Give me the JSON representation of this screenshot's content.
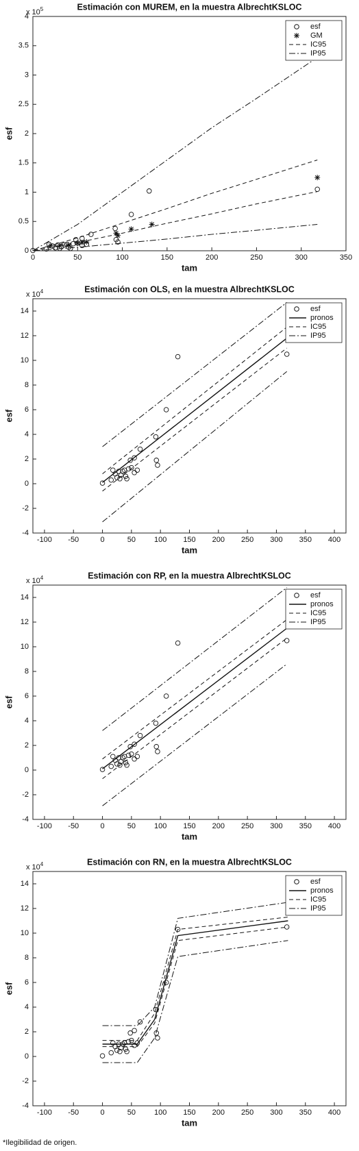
{
  "chart_data": [
    {
      "type": "scatter",
      "title": "Estimación con MUREM, en la muestra AlbrechtKSLOC",
      "x_label": "tam",
      "y_label": "esf",
      "y_multiplier": {
        "base": "x 10",
        "exponent": "5"
      },
      "xlim": [
        0,
        350
      ],
      "xticks": [
        0,
        50,
        100,
        150,
        200,
        250,
        300,
        350
      ],
      "ylim": [
        0,
        400000
      ],
      "yticks": [
        0,
        {
          "value": 50000,
          "label": "0.5"
        },
        {
          "value": 100000,
          "label": "1"
        },
        {
          "value": 150000,
          "label": "1.5"
        },
        {
          "value": 200000,
          "label": "2"
        },
        {
          "value": 250000,
          "label": "2.5"
        },
        {
          "value": 300000,
          "label": "3"
        },
        {
          "value": 350000,
          "label": "3.5"
        },
        {
          "value": 400000,
          "label": "4"
        }
      ],
      "series": [
        {
          "name": "esf",
          "marker": "circle",
          "x": [
            0,
            15,
            18,
            22,
            25,
            28,
            30,
            32,
            35,
            38,
            40,
            42,
            45,
            48,
            50,
            55,
            55,
            60,
            65,
            92,
            93,
            95,
            110,
            130,
            318
          ],
          "values": [
            500,
            3000,
            11000,
            8000,
            5000,
            10000,
            4000,
            7000,
            10000,
            11000,
            6000,
            4000,
            12000,
            19000,
            13000,
            9000,
            21000,
            11000,
            28000,
            38000,
            19000,
            15000,
            62000,
            102000,
            105000
          ]
        },
        {
          "name": "GM",
          "marker": "star",
          "x": [
            20,
            30,
            40,
            50,
            55,
            60,
            93,
            95,
            110,
            133,
            318
          ],
          "values": [
            9000,
            9000,
            10000,
            13000,
            14000,
            15000,
            30000,
            26000,
            37000,
            45000,
            125000
          ]
        },
        {
          "name": "IC95",
          "dash": "dashed",
          "x": [
            1,
            50,
            100,
            150,
            200,
            250,
            318
          ],
          "upper": [
            500,
            22000,
            47000,
            72000,
            98000,
            122000,
            155000
          ],
          "lower": [
            300,
            14000,
            30000,
            47000,
            63000,
            80000,
            101000
          ]
        },
        {
          "name": "IP95",
          "dash": "dashdot",
          "x": [
            1,
            50,
            100,
            150,
            200,
            250,
            318
          ],
          "upper": [
            1000,
            45000,
            100000,
            155000,
            210000,
            260000,
            330000
          ],
          "lower": [
            100,
            6000,
            13000,
            20000,
            28000,
            35000,
            45000
          ]
        }
      ]
    },
    {
      "type": "scatter",
      "title": "Estimación con OLS, en la muestra AlbrechtKSLOC",
      "x_label": "tam",
      "y_label": "esf",
      "y_multiplier": {
        "base": "x 10",
        "exponent": "4"
      },
      "xlim": [
        -120,
        420
      ],
      "xticks": [
        -100,
        -50,
        0,
        50,
        100,
        150,
        200,
        250,
        300,
        350,
        400
      ],
      "ylim": [
        -40000,
        150000
      ],
      "yticks": [
        {
          "value": -40000,
          "label": "-4"
        },
        {
          "value": -20000,
          "label": "-2"
        },
        0,
        {
          "value": 20000,
          "label": "2"
        },
        {
          "value": 40000,
          "label": "4"
        },
        {
          "value": 60000,
          "label": "6"
        },
        {
          "value": 80000,
          "label": "8"
        },
        {
          "value": 100000,
          "label": "10"
        },
        {
          "value": 120000,
          "label": "12"
        },
        {
          "value": 140000,
          "label": "14"
        }
      ],
      "series": [
        {
          "name": "esf",
          "marker": "circle",
          "x": [
            0,
            15,
            18,
            22,
            25,
            28,
            30,
            32,
            35,
            38,
            40,
            42,
            45,
            48,
            50,
            55,
            55,
            60,
            65,
            92,
            93,
            95,
            110,
            130,
            318
          ],
          "values": [
            500,
            3000,
            11000,
            8000,
            5000,
            10000,
            4000,
            7000,
            10000,
            11000,
            6000,
            4000,
            12000,
            19000,
            13000,
            9000,
            21000,
            11000,
            28000,
            38000,
            19000,
            15000,
            60000,
            103000,
            105000
          ]
        },
        {
          "name": "pronos",
          "dash": "solid",
          "x": [
            0,
            318
          ],
          "values": [
            1000,
            118000
          ]
        },
        {
          "name": "IC95",
          "dash": "dashed",
          "x": [
            0,
            318
          ],
          "upper": [
            8000,
            127000
          ],
          "lower": [
            -6000,
            110000
          ]
        },
        {
          "name": "IP95",
          "dash": "dashdot",
          "x": [
            0,
            318
          ],
          "upper": [
            30000,
            147000
          ],
          "lower": [
            -31000,
            91000
          ]
        }
      ]
    },
    {
      "type": "scatter",
      "title": "Estimación con RP, en la muestra AlbrechtKSLOC",
      "x_label": "tam",
      "y_label": "esf",
      "y_multiplier": {
        "base": "x 10",
        "exponent": "4"
      },
      "xlim": [
        -120,
        420
      ],
      "xticks": [
        -100,
        -50,
        0,
        50,
        100,
        150,
        200,
        250,
        300,
        350,
        400
      ],
      "ylim": [
        -40000,
        150000
      ],
      "yticks": [
        {
          "value": -40000,
          "label": "-4"
        },
        {
          "value": -20000,
          "label": "-2"
        },
        0,
        {
          "value": 20000,
          "label": "2"
        },
        {
          "value": 40000,
          "label": "4"
        },
        {
          "value": 60000,
          "label": "6"
        },
        {
          "value": 80000,
          "label": "8"
        },
        {
          "value": 100000,
          "label": "10"
        },
        {
          "value": 120000,
          "label": "12"
        },
        {
          "value": 140000,
          "label": "14"
        }
      ],
      "series": [
        {
          "name": "esf",
          "marker": "circle",
          "x": [
            0,
            15,
            18,
            22,
            25,
            28,
            30,
            32,
            35,
            38,
            40,
            42,
            45,
            48,
            50,
            55,
            55,
            60,
            65,
            92,
            93,
            95,
            110,
            130,
            318
          ],
          "values": [
            500,
            3000,
            11000,
            8000,
            5000,
            10000,
            4000,
            7000,
            10000,
            11000,
            6000,
            4000,
            12000,
            19000,
            13000,
            9000,
            21000,
            11000,
            28000,
            38000,
            19000,
            15000,
            60000,
            103000,
            105000
          ]
        },
        {
          "name": "pronos",
          "dash": "solid",
          "x": [
            0,
            318
          ],
          "values": [
            1000,
            115000
          ]
        },
        {
          "name": "IC95",
          "dash": "dashed",
          "x": [
            0,
            318
          ],
          "upper": [
            9000,
            122000
          ],
          "lower": [
            -7000,
            107000
          ]
        },
        {
          "name": "IP95",
          "dash": "dashdot",
          "x": [
            0,
            318
          ],
          "upper": [
            32000,
            148000
          ],
          "lower": [
            -29000,
            86000
          ]
        }
      ]
    },
    {
      "type": "scatter",
      "title": "Estimación con RN, en la muestra AlbrechtKSLOC",
      "x_label": "tam",
      "y_label": "esf",
      "y_multiplier": {
        "base": "x 10",
        "exponent": "4"
      },
      "xlim": [
        -120,
        420
      ],
      "xticks": [
        -100,
        -50,
        0,
        50,
        100,
        150,
        200,
        250,
        300,
        350,
        400
      ],
      "ylim": [
        -40000,
        150000
      ],
      "yticks": [
        {
          "value": -40000,
          "label": "-4"
        },
        {
          "value": -20000,
          "label": "-2"
        },
        0,
        {
          "value": 20000,
          "label": "2"
        },
        {
          "value": 40000,
          "label": "4"
        },
        {
          "value": 60000,
          "label": "6"
        },
        {
          "value": 80000,
          "label": "8"
        },
        {
          "value": 100000,
          "label": "10"
        },
        {
          "value": 120000,
          "label": "12"
        },
        {
          "value": 140000,
          "label": "14"
        }
      ],
      "series": [
        {
          "name": "esf",
          "marker": "circle",
          "x": [
            0,
            15,
            18,
            22,
            25,
            28,
            30,
            32,
            35,
            38,
            40,
            42,
            45,
            48,
            50,
            55,
            55,
            60,
            65,
            92,
            93,
            95,
            110,
            130,
            318
          ],
          "values": [
            500,
            3000,
            11000,
            8000,
            5000,
            10000,
            4000,
            7000,
            10000,
            11000,
            6000,
            4000,
            12000,
            19000,
            13000,
            9000,
            21000,
            11000,
            28000,
            38000,
            19000,
            15000,
            60000,
            103000,
            105000
          ]
        },
        {
          "name": "pronos",
          "dash": "solid",
          "x": [
            0,
            60,
            90,
            130,
            320
          ],
          "values": [
            10000,
            10000,
            30000,
            98000,
            110000
          ]
        },
        {
          "name": "IC95",
          "dash": "dashed",
          "x": [
            0,
            60,
            90,
            130,
            320
          ],
          "upper": [
            13000,
            13000,
            35000,
            103000,
            113000
          ],
          "lower": [
            8000,
            8000,
            27000,
            94000,
            105000
          ]
        },
        {
          "name": "IP95",
          "dash": "dashdot",
          "x": [
            0,
            60,
            90,
            130,
            320
          ],
          "upper": [
            25000,
            25000,
            40000,
            112000,
            125000
          ],
          "lower": [
            -5000,
            -5000,
            15000,
            81000,
            94000
          ]
        }
      ]
    }
  ],
  "footnote": "*Ilegibilidad de origen."
}
